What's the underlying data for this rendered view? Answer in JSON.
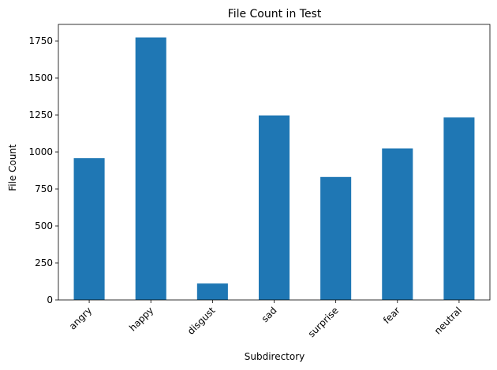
{
  "chart_data": {
    "type": "bar",
    "title": "File Count in Test",
    "xlabel": "Subdirectory",
    "ylabel": "File Count",
    "categories": [
      "angry",
      "happy",
      "disgust",
      "sad",
      "surprise",
      "fear",
      "neutral"
    ],
    "values": [
      958,
      1774,
      111,
      1247,
      831,
      1024,
      1233
    ],
    "ylim": [
      0,
      1862
    ],
    "yticks": [
      0,
      250,
      500,
      750,
      1000,
      1250,
      1500,
      1750
    ],
    "bar_color": "#1f77b4",
    "grid": false,
    "legend": "none"
  }
}
